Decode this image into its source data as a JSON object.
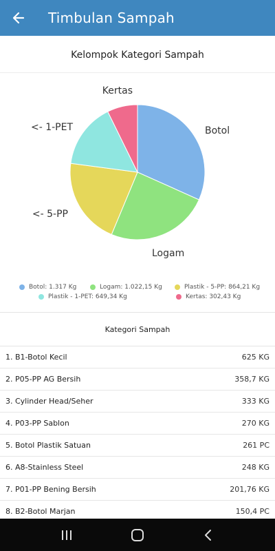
{
  "appbar": {
    "title": "Timbulan Sampah",
    "back_icon": "arrow-left-icon"
  },
  "chart_data": {
    "type": "pie",
    "title": "Kelompok Kategori Sampah",
    "slices": [
      {
        "label": "Botol",
        "legend": "Botol: 1.317 Kg",
        "value": 1317,
        "color": "#7eb3e8"
      },
      {
        "label": "Logam",
        "legend": "Logam: 1.022,15 Kg",
        "value": 1022.15,
        "color": "#8fe37f"
      },
      {
        "label": "<- 5-PP",
        "legend": "Plastik - 5-PP: 864,21 Kg",
        "value": 864.21,
        "color": "#e5d75a"
      },
      {
        "label": "<- 1-PET",
        "legend": "Plastik - 1-PET: 649,34 Kg",
        "value": 649.34,
        "color": "#8fe6e0"
      },
      {
        "label": "Kertas",
        "legend": "Kertas: 302,43 Kg",
        "value": 302.43,
        "color": "#ef6a8c"
      }
    ],
    "legend_position": "bottom"
  },
  "list": {
    "header": "Kategori Sampah",
    "items": [
      {
        "name": "1. B1-Botol Kecil",
        "value": "625 KG"
      },
      {
        "name": "2. P05-PP AG Bersih",
        "value": "358,7 KG"
      },
      {
        "name": "3. Cylinder Head/Seher",
        "value": "333 KG"
      },
      {
        "name": "4. P03-PP Sablon",
        "value": "270 KG"
      },
      {
        "name": "5. Botol Plastik Satuan",
        "value": "261 PC"
      },
      {
        "name": "6. A8-Stainless Steel",
        "value": "248 KG"
      },
      {
        "name": "7. P01-PP Bening Bersih",
        "value": "201,76 KG"
      },
      {
        "name": "8. B2-Botol Marjan",
        "value": "150,4 PC"
      }
    ]
  },
  "navbar": {
    "recents_icon": "recents-icon",
    "home_icon": "home-icon",
    "back_icon": "back-chevron-icon"
  }
}
